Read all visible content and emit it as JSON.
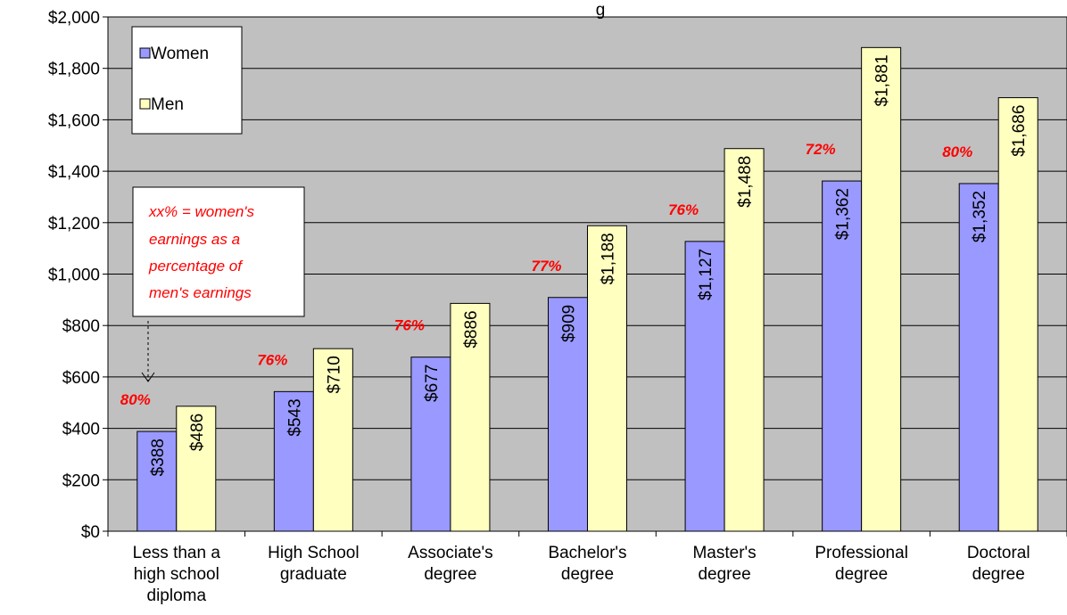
{
  "chart_data": {
    "type": "bar",
    "title": "g",
    "categories": [
      [
        "Less than a",
        "high school",
        "diploma"
      ],
      [
        "High School",
        "graduate"
      ],
      [
        "Associate's",
        "degree"
      ],
      [
        "Bachelor's",
        "degree"
      ],
      [
        "Master's",
        "degree"
      ],
      [
        "Professional",
        "degree"
      ],
      [
        "Doctoral",
        "degree"
      ]
    ],
    "series": [
      {
        "name": "Women",
        "values": [
          388,
          543,
          677,
          909,
          1127,
          1362,
          1352
        ],
        "labels": [
          "$388",
          "$543",
          "$677",
          "$909",
          "$1,127",
          "$1,362",
          "$1,352"
        ],
        "color": "#9999ff"
      },
      {
        "name": "Men",
        "values": [
          486,
          710,
          886,
          1188,
          1488,
          1881,
          1686
        ],
        "labels": [
          "$486",
          "$710",
          "$886",
          "$1,188",
          "$1,488",
          "$1,881",
          "$1,686"
        ],
        "color": "#ffffc0"
      }
    ],
    "percent_labels": [
      "80%",
      "76%",
      "76%",
      "77%",
      "76%",
      "72%",
      "80%"
    ],
    "ylim": [
      0,
      2000
    ],
    "y_ticks": [
      0,
      200,
      400,
      600,
      800,
      1000,
      1200,
      1400,
      1600,
      1800,
      2000
    ],
    "y_tick_labels": [
      "$0",
      "$200",
      "$400",
      "$600",
      "$800",
      "$1,000",
      "$1,200",
      "$1,400",
      "$1,600",
      "$1,800",
      "$2,000"
    ],
    "grid": true,
    "plot_background": "#c0c0c0",
    "legend_position": "top-left",
    "annotation": {
      "lines": [
        "xx% = women's",
        "earnings as a",
        "percentage of",
        "men's earnings"
      ],
      "color": "#ff0000"
    }
  }
}
